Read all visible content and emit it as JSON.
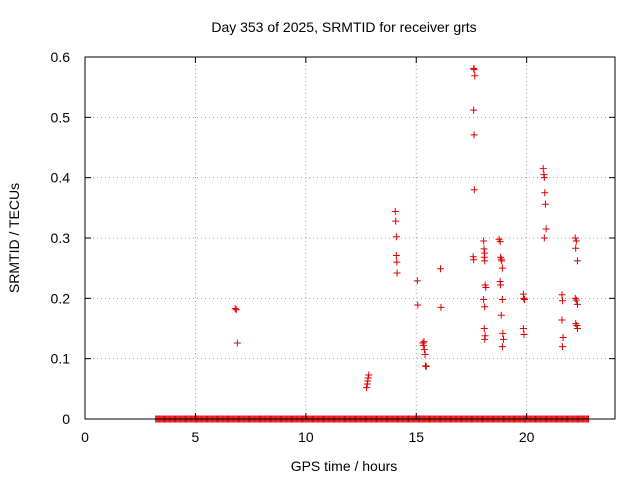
{
  "chart_data": {
    "type": "scatter",
    "title": "Day 353 of 2025, SRMTID for receiver grts",
    "xlabel": "GPS time / hours",
    "ylabel": "SRMTID / TECUs",
    "xlim": [
      0,
      24
    ],
    "ylim": [
      0,
      0.6
    ],
    "xticks": [
      0,
      5,
      10,
      15,
      20
    ],
    "xtick_labels": [
      "0",
      "5",
      "10",
      "15",
      "20"
    ],
    "yticks": [
      0,
      0.1,
      0.2,
      0.3,
      0.4,
      0.5,
      0.6
    ],
    "ytick_labels": [
      "0",
      "0.1",
      "0.2",
      "0.3",
      "0.4",
      "0.5",
      "0.6"
    ],
    "grid": true,
    "marker": "+",
    "color": "#e00000",
    "baseline_zero_range": [
      3.2,
      22.8
    ],
    "baseline_zero_step": 0.05,
    "series": [
      {
        "name": "SRMTID",
        "points": [
          [
            6.8,
            0.183
          ],
          [
            6.85,
            0.181
          ],
          [
            6.9,
            0.126
          ],
          [
            12.75,
            0.052
          ],
          [
            12.78,
            0.058
          ],
          [
            12.8,
            0.063
          ],
          [
            12.82,
            0.068
          ],
          [
            12.85,
            0.073
          ],
          [
            14.05,
            0.344
          ],
          [
            14.07,
            0.328
          ],
          [
            14.1,
            0.302
          ],
          [
            14.1,
            0.271
          ],
          [
            14.12,
            0.26
          ],
          [
            14.13,
            0.242
          ],
          [
            15.05,
            0.229
          ],
          [
            15.07,
            0.189
          ],
          [
            15.3,
            0.126
          ],
          [
            15.32,
            0.122
          ],
          [
            15.35,
            0.128
          ],
          [
            15.37,
            0.115
          ],
          [
            15.4,
            0.107
          ],
          [
            15.42,
            0.088
          ],
          [
            15.45,
            0.087
          ],
          [
            16.1,
            0.249
          ],
          [
            16.12,
            0.185
          ],
          [
            17.6,
            0.581
          ],
          [
            17.62,
            0.579
          ],
          [
            17.65,
            0.569
          ],
          [
            17.6,
            0.512
          ],
          [
            17.62,
            0.471
          ],
          [
            17.63,
            0.38
          ],
          [
            17.58,
            0.269
          ],
          [
            17.6,
            0.264
          ],
          [
            18.05,
            0.295
          ],
          [
            18.07,
            0.282
          ],
          [
            18.1,
            0.275
          ],
          [
            18.08,
            0.268
          ],
          [
            18.1,
            0.262
          ],
          [
            18.12,
            0.222
          ],
          [
            18.15,
            0.218
          ],
          [
            18.05,
            0.198
          ],
          [
            18.1,
            0.186
          ],
          [
            18.08,
            0.15
          ],
          [
            18.12,
            0.138
          ],
          [
            18.1,
            0.132
          ],
          [
            18.75,
            0.298
          ],
          [
            18.8,
            0.294
          ],
          [
            18.82,
            0.268
          ],
          [
            18.85,
            0.265
          ],
          [
            18.87,
            0.262
          ],
          [
            18.9,
            0.25
          ],
          [
            18.8,
            0.228
          ],
          [
            18.82,
            0.222
          ],
          [
            18.9,
            0.198
          ],
          [
            18.85,
            0.172
          ],
          [
            18.92,
            0.142
          ],
          [
            18.95,
            0.132
          ],
          [
            18.9,
            0.12
          ],
          [
            19.85,
            0.207
          ],
          [
            19.87,
            0.2
          ],
          [
            19.9,
            0.198
          ],
          [
            19.85,
            0.15
          ],
          [
            19.88,
            0.14
          ],
          [
            20.75,
            0.415
          ],
          [
            20.78,
            0.405
          ],
          [
            20.8,
            0.4
          ],
          [
            20.82,
            0.375
          ],
          [
            20.85,
            0.356
          ],
          [
            20.88,
            0.315
          ],
          [
            20.8,
            0.3
          ],
          [
            21.6,
            0.206
          ],
          [
            21.62,
            0.196
          ],
          [
            21.6,
            0.164
          ],
          [
            21.65,
            0.135
          ],
          [
            21.62,
            0.12
          ],
          [
            22.2,
            0.3
          ],
          [
            22.25,
            0.295
          ],
          [
            22.22,
            0.283
          ],
          [
            22.3,
            0.262
          ],
          [
            22.2,
            0.2
          ],
          [
            22.25,
            0.197
          ],
          [
            22.3,
            0.19
          ],
          [
            22.22,
            0.158
          ],
          [
            22.27,
            0.155
          ],
          [
            22.3,
            0.15
          ]
        ]
      }
    ]
  }
}
